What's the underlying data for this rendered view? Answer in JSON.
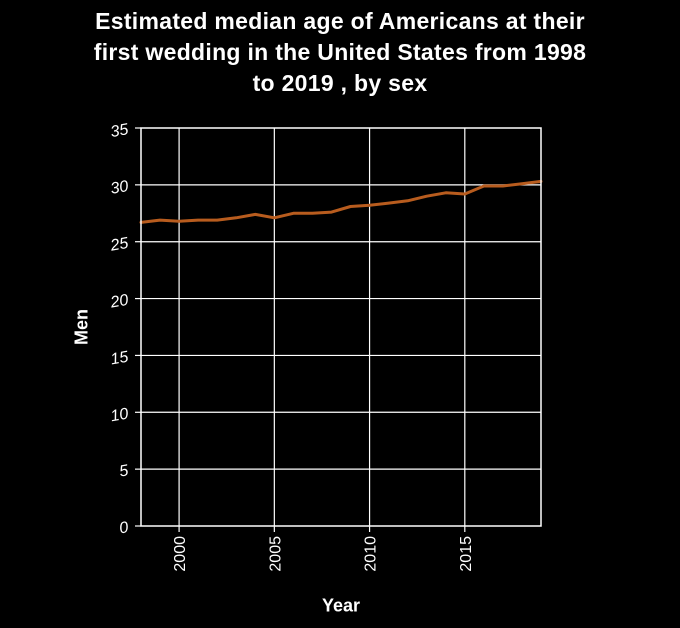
{
  "chart_data": {
    "type": "line",
    "title_lines": [
      "Estimated median age of Americans at their",
      "first wedding in the United States from 1998",
      "to 2019 , by sex"
    ],
    "xlabel": "Year",
    "ylabel": "Men",
    "xlim": [
      1998,
      2019
    ],
    "ylim": [
      0,
      35
    ],
    "x_ticks": [
      2000,
      2005,
      2010,
      2015
    ],
    "y_ticks": [
      0,
      5,
      10,
      15,
      20,
      25,
      30,
      35
    ],
    "grid": true,
    "series": [
      {
        "color": "#b85c1e",
        "x": [
          1998,
          1999,
          2000,
          2001,
          2002,
          2003,
          2004,
          2005,
          2006,
          2007,
          2008,
          2009,
          2010,
          2011,
          2012,
          2013,
          2014,
          2015,
          2016,
          2017,
          2018,
          2019
        ],
        "values": [
          26.7,
          26.9,
          26.8,
          26.9,
          26.9,
          27.1,
          27.4,
          27.1,
          27.5,
          27.5,
          27.6,
          28.1,
          28.2,
          28.4,
          28.6,
          29.0,
          29.3,
          29.2,
          29.9,
          29.9,
          30.1,
          30.3
        ]
      }
    ]
  }
}
